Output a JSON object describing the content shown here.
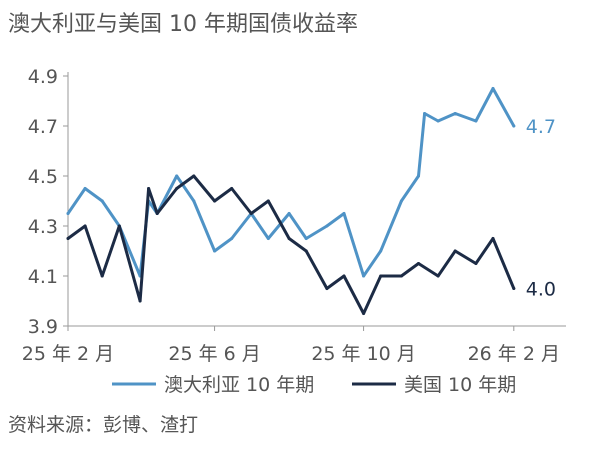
{
  "title": "澳大利亚与美国 10 年期国债收益率",
  "source": "资料来源：彭博、渣打",
  "chart_data": {
    "type": "line",
    "title": "澳大利亚与美国 10 年期国债收益率",
    "xlabel": "",
    "ylabel": "",
    "ylim": [
      3.9,
      4.9
    ],
    "yticks": [
      3.9,
      4.1,
      4.3,
      4.5,
      4.7,
      4.9
    ],
    "y_tick_labels": [
      "3.9",
      "4.1",
      "4.3",
      "4.5",
      "4.7",
      "4.9"
    ],
    "x_tick_labels": [
      "25 年 2 月",
      "25 年 6 月",
      "25 年 10 月",
      "26 年 2 月"
    ],
    "x_tick_months": [
      "2025-02",
      "2025-06",
      "2025-10",
      "2026-02"
    ],
    "grid": false,
    "legend_position": "bottom",
    "series": [
      {
        "name": "澳大利亚 10 年期",
        "color": "#4f93c6",
        "end_label": "4.7",
        "x": [
          "2025-02-01",
          "2025-02-15",
          "2025-03-01",
          "2025-03-15",
          "2025-04-01",
          "2025-04-08",
          "2025-04-15",
          "2025-05-01",
          "2025-05-15",
          "2025-06-01",
          "2025-06-15",
          "2025-07-01",
          "2025-07-15",
          "2025-08-01",
          "2025-08-15",
          "2025-09-01",
          "2025-09-15",
          "2025-10-01",
          "2025-10-15",
          "2025-11-01",
          "2025-11-15",
          "2025-11-20",
          "2025-12-01",
          "2025-12-15",
          "2026-01-01",
          "2026-01-15",
          "2026-02-01"
        ],
        "values": [
          4.35,
          4.45,
          4.4,
          4.3,
          4.1,
          4.4,
          4.35,
          4.5,
          4.4,
          4.2,
          4.25,
          4.35,
          4.25,
          4.35,
          4.25,
          4.3,
          4.35,
          4.1,
          4.2,
          4.4,
          4.5,
          4.75,
          4.72,
          4.75,
          4.72,
          4.85,
          4.7
        ]
      },
      {
        "name": "美国 10 年期",
        "color": "#1c2b45",
        "end_label": "4.0",
        "x": [
          "2025-02-01",
          "2025-02-15",
          "2025-03-01",
          "2025-03-15",
          "2025-04-01",
          "2025-04-08",
          "2025-04-15",
          "2025-05-01",
          "2025-05-15",
          "2025-06-01",
          "2025-06-15",
          "2025-07-01",
          "2025-07-15",
          "2025-08-01",
          "2025-08-15",
          "2025-09-01",
          "2025-09-15",
          "2025-10-01",
          "2025-10-15",
          "2025-11-01",
          "2025-11-15",
          "2025-12-01",
          "2025-12-15",
          "2026-01-01",
          "2026-01-15",
          "2026-02-01"
        ],
        "values": [
          4.25,
          4.3,
          4.1,
          4.3,
          4.0,
          4.45,
          4.35,
          4.45,
          4.5,
          4.4,
          4.45,
          4.35,
          4.4,
          4.25,
          4.2,
          4.05,
          4.1,
          3.95,
          4.1,
          4.1,
          4.15,
          4.1,
          4.2,
          4.15,
          4.25,
          4.05
        ]
      }
    ]
  }
}
